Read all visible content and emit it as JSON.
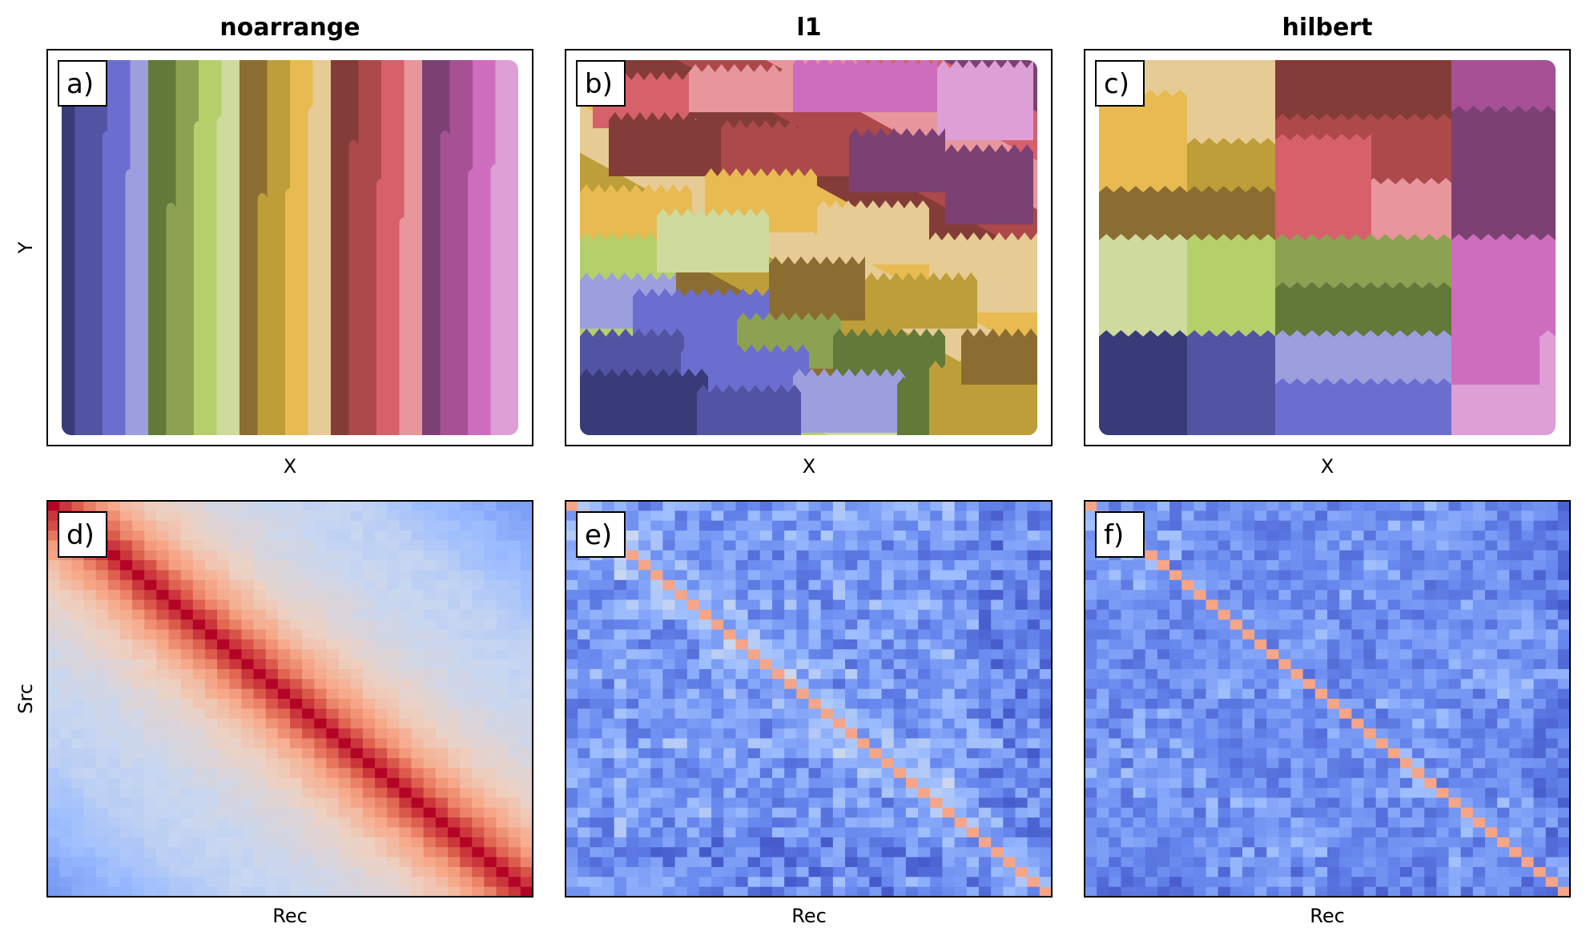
{
  "chart_data": [
    {
      "panel": "a)",
      "type": "area",
      "title": "noarrange",
      "xlabel": "X",
      "ylabel": "Y",
      "grid": false,
      "description_values": {
        "arrangement": "noarrange",
        "n_groups": 20
      }
    },
    {
      "panel": "b)",
      "type": "area",
      "title": "l1",
      "xlabel": "X",
      "ylabel": "",
      "grid": false,
      "description_values": {
        "arrangement": "l1",
        "n_groups": 20
      }
    },
    {
      "panel": "c)",
      "type": "area",
      "title": "hilbert",
      "xlabel": "X",
      "ylabel": "",
      "grid": false,
      "description_values": {
        "arrangement": "hilbert",
        "n_groups": 20
      }
    },
    {
      "panel": "d)",
      "type": "heatmap",
      "title": "",
      "xlabel": "Rec",
      "ylabel": "Src",
      "grid": false,
      "colormap": "coolwarm",
      "size": 40,
      "pattern": "strong diagonal band, values decay with distance from diagonal"
    },
    {
      "panel": "e)",
      "type": "heatmap",
      "title": "",
      "xlabel": "Rec",
      "ylabel": "",
      "grid": false,
      "colormap": "coolwarm",
      "size": 40,
      "pattern": "mostly low values with a thin diagonal"
    },
    {
      "panel": "f)",
      "type": "heatmap",
      "title": "",
      "xlabel": "Rec",
      "ylabel": "",
      "grid": false,
      "colormap": "coolwarm",
      "size": 40,
      "pattern": "mostly low values with a thin diagonal"
    }
  ],
  "palette": [
    "#393b79",
    "#5254a3",
    "#6b6ecf",
    "#9c9ede",
    "#637939",
    "#8ca252",
    "#b5cf6b",
    "#cedb9c",
    "#8c6d31",
    "#bd9e39",
    "#e7ba52",
    "#e7cb94",
    "#843c39",
    "#ad494a",
    "#d6616b",
    "#e7969c",
    "#7b4173",
    "#a55194",
    "#ce6dbd",
    "#de9ed6"
  ],
  "colormap_stops": [
    "#3b4cc0",
    "#6788ee",
    "#9abbff",
    "#c9d7f0",
    "#edd1c2",
    "#f7a889",
    "#e26952",
    "#b40426"
  ]
}
